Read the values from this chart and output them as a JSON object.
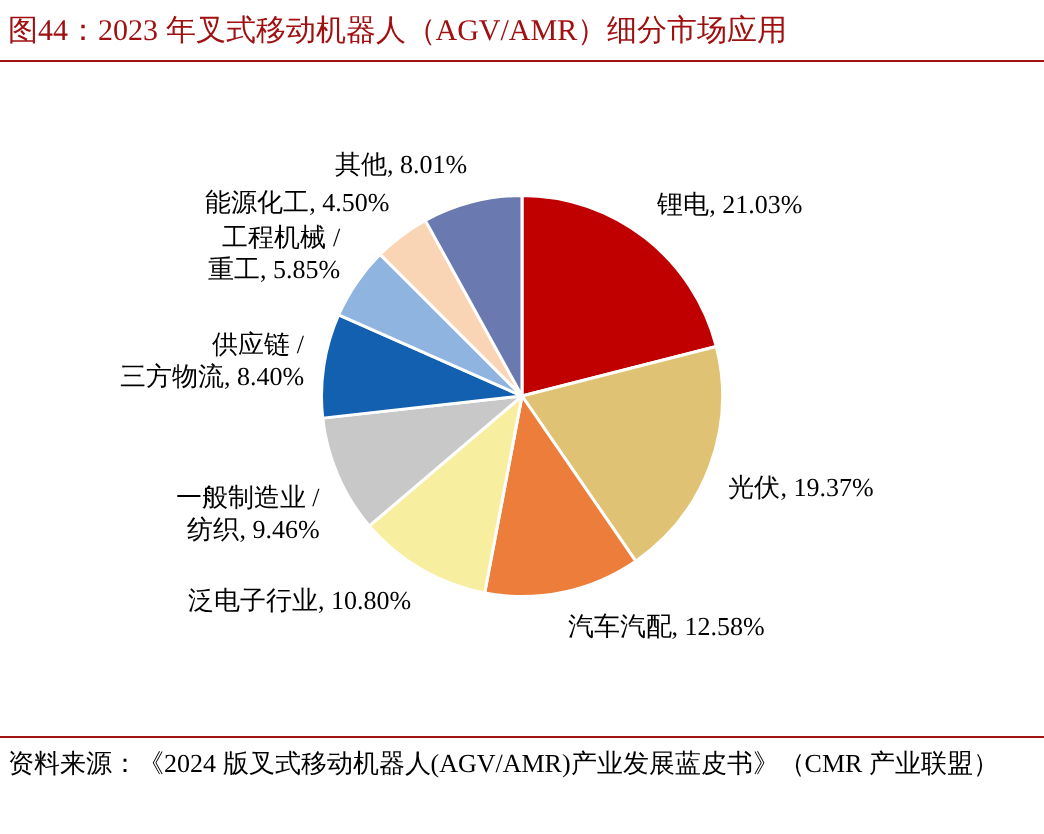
{
  "chart_data": {
    "type": "pie",
    "title": "图44：2023 年叉式移动机器人（AGV/AMR）细分市场应用",
    "categories": [
      "锂电",
      "光伏",
      "汽车汽配",
      "泛电子行业",
      "一般制造业 / 纺织",
      "供应链 / 三方物流",
      "工程机械 / 重工",
      "能源化工",
      "其他"
    ],
    "values": [
      21.03,
      19.37,
      12.58,
      10.8,
      9.46,
      8.4,
      5.85,
      4.5,
      8.01
    ],
    "colors": [
      "#c00000",
      "#dfc273",
      "#ed7d3b",
      "#f8eea0",
      "#c8c8c8",
      "#1360b0",
      "#8fb4e0",
      "#f9d5b5",
      "#6a7ab0"
    ],
    "value_labels": [
      ", 21.03%",
      ", 19.37%",
      ", 12.58%",
      ", 10.80%",
      ", 9.46%",
      ", 8.40%",
      ", 5.85%",
      ", 4.50%",
      ", 8.01%"
    ],
    "annotations": [
      "资料来源：《2024 版叉式移动机器人(AGV/AMR)产业发展蓝皮书》（CMR 产业联盟）"
    ]
  }
}
